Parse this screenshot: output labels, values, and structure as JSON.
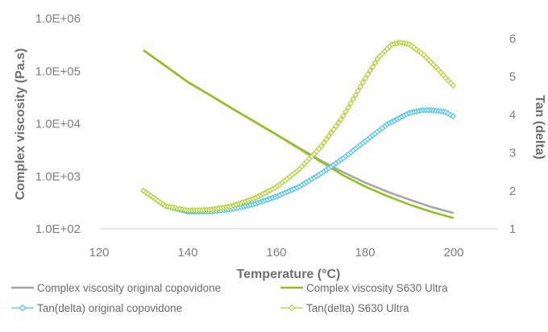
{
  "chart_data": {
    "type": "line",
    "xlabel": "Temperature (°C)",
    "ylabel_left": "Complex viscosity (Pa.s)",
    "ylabel_right": "Tan (delta)",
    "x_ticks": [
      120,
      140,
      160,
      180,
      200
    ],
    "y_left_ticks": [
      "1.0E+02",
      "1.0E+03",
      "1.0E+04",
      "1.0E+05",
      "1.0E+06"
    ],
    "y_right_ticks": [
      1,
      2,
      3,
      4,
      5,
      6
    ],
    "xlim": [
      120,
      210
    ],
    "ylim_left": [
      100,
      1000000
    ],
    "ylim_left_scale": "log",
    "ylim_right": [
      1,
      6.25
    ],
    "grid": false,
    "legend_position": "bottom",
    "series": [
      {
        "name": "Complex viscosity original copovidone",
        "axis": "left",
        "marker": "none",
        "color": "#a6a6a6",
        "x": [
          130,
          135,
          140,
          145,
          150,
          155,
          160,
          165,
          170,
          175,
          180,
          185,
          190,
          195,
          200
        ],
        "y": [
          250000,
          125000,
          62000,
          35000,
          19500,
          11000,
          6200,
          3500,
          2000,
          1200,
          760,
          510,
          360,
          260,
          200
        ]
      },
      {
        "name": "Complex viscosity S630 Ultra",
        "axis": "left",
        "marker": "none",
        "color": "#92c020",
        "x": [
          130,
          135,
          140,
          145,
          150,
          155,
          160,
          165,
          170,
          175,
          180,
          185,
          190,
          195,
          200
        ],
        "y": [
          250000,
          125000,
          62000,
          35000,
          19500,
          11000,
          6200,
          3400,
          1900,
          1050,
          640,
          420,
          290,
          210,
          160
        ]
      },
      {
        "name": "Tan(delta) original copovidone",
        "axis": "right",
        "marker": "diamond",
        "color": "#4ec3e6",
        "x": [
          130,
          135,
          140,
          145,
          150,
          155,
          160,
          165,
          170,
          175,
          180,
          185,
          190,
          193,
          195,
          198,
          200
        ],
        "y": [
          2.0,
          1.6,
          1.45,
          1.45,
          1.52,
          1.65,
          1.85,
          2.1,
          2.45,
          2.85,
          3.3,
          3.75,
          4.05,
          4.12,
          4.12,
          4.08,
          3.95
        ]
      },
      {
        "name": "Tan(delta) S630 Ultra",
        "axis": "right",
        "marker": "diamond",
        "color": "#b2d235",
        "x": [
          130,
          135,
          140,
          145,
          150,
          155,
          160,
          165,
          170,
          175,
          180,
          183,
          186,
          188,
          190,
          193,
          196,
          198,
          200
        ],
        "y": [
          2.0,
          1.6,
          1.48,
          1.5,
          1.6,
          1.8,
          2.1,
          2.55,
          3.15,
          3.95,
          4.95,
          5.5,
          5.85,
          5.9,
          5.85,
          5.6,
          5.25,
          5.0,
          4.75
        ]
      }
    ]
  }
}
